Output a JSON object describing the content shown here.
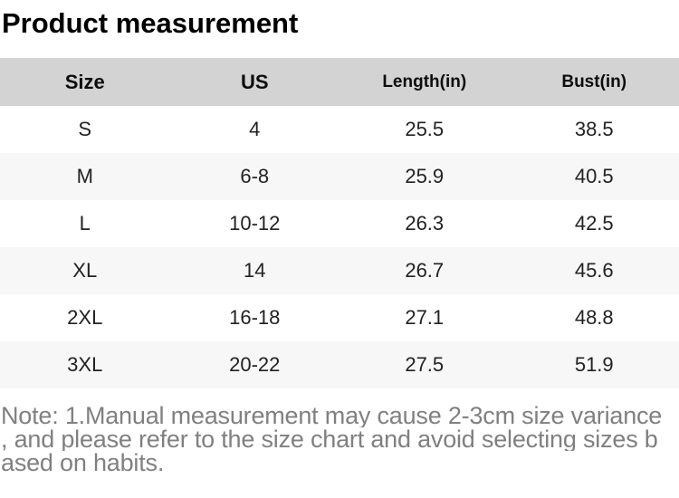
{
  "title": "Product measurement",
  "table": {
    "columns": [
      {
        "label": "Size"
      },
      {
        "label": "US"
      },
      {
        "label": "Length(in)"
      },
      {
        "label": "Bust(in)"
      }
    ],
    "rows": [
      [
        "S",
        "4",
        "25.5",
        "38.5"
      ],
      [
        "M",
        "6-8",
        "25.9",
        "40.5"
      ],
      [
        "L",
        "10-12",
        "26.3",
        "42.5"
      ],
      [
        "XL",
        "14",
        "26.7",
        "45.6"
      ],
      [
        "2XL",
        "16-18",
        "27.1",
        "48.8"
      ],
      [
        "3XL",
        "20-22",
        "27.5",
        "51.9"
      ]
    ]
  },
  "note": {
    "full_text": "Note: 1.Manual measurement may cause 2-3cm size variance , and please refer to the size chart and avoid selecting sizes based on habits.",
    "lines": [
      "Note: 1.Manual measurement may cause 2-3cm size variance",
      ", and please refer to the size chart and avoid selecting sizes b",
      "ased on habits."
    ]
  },
  "colors": {
    "header_bg": "#d3d3d3",
    "alt_row_bg": "#f7f7f7",
    "body_text": "#222222",
    "header_text": "#0d0d0d",
    "note_text": "#808080",
    "title_text": "#000000"
  }
}
